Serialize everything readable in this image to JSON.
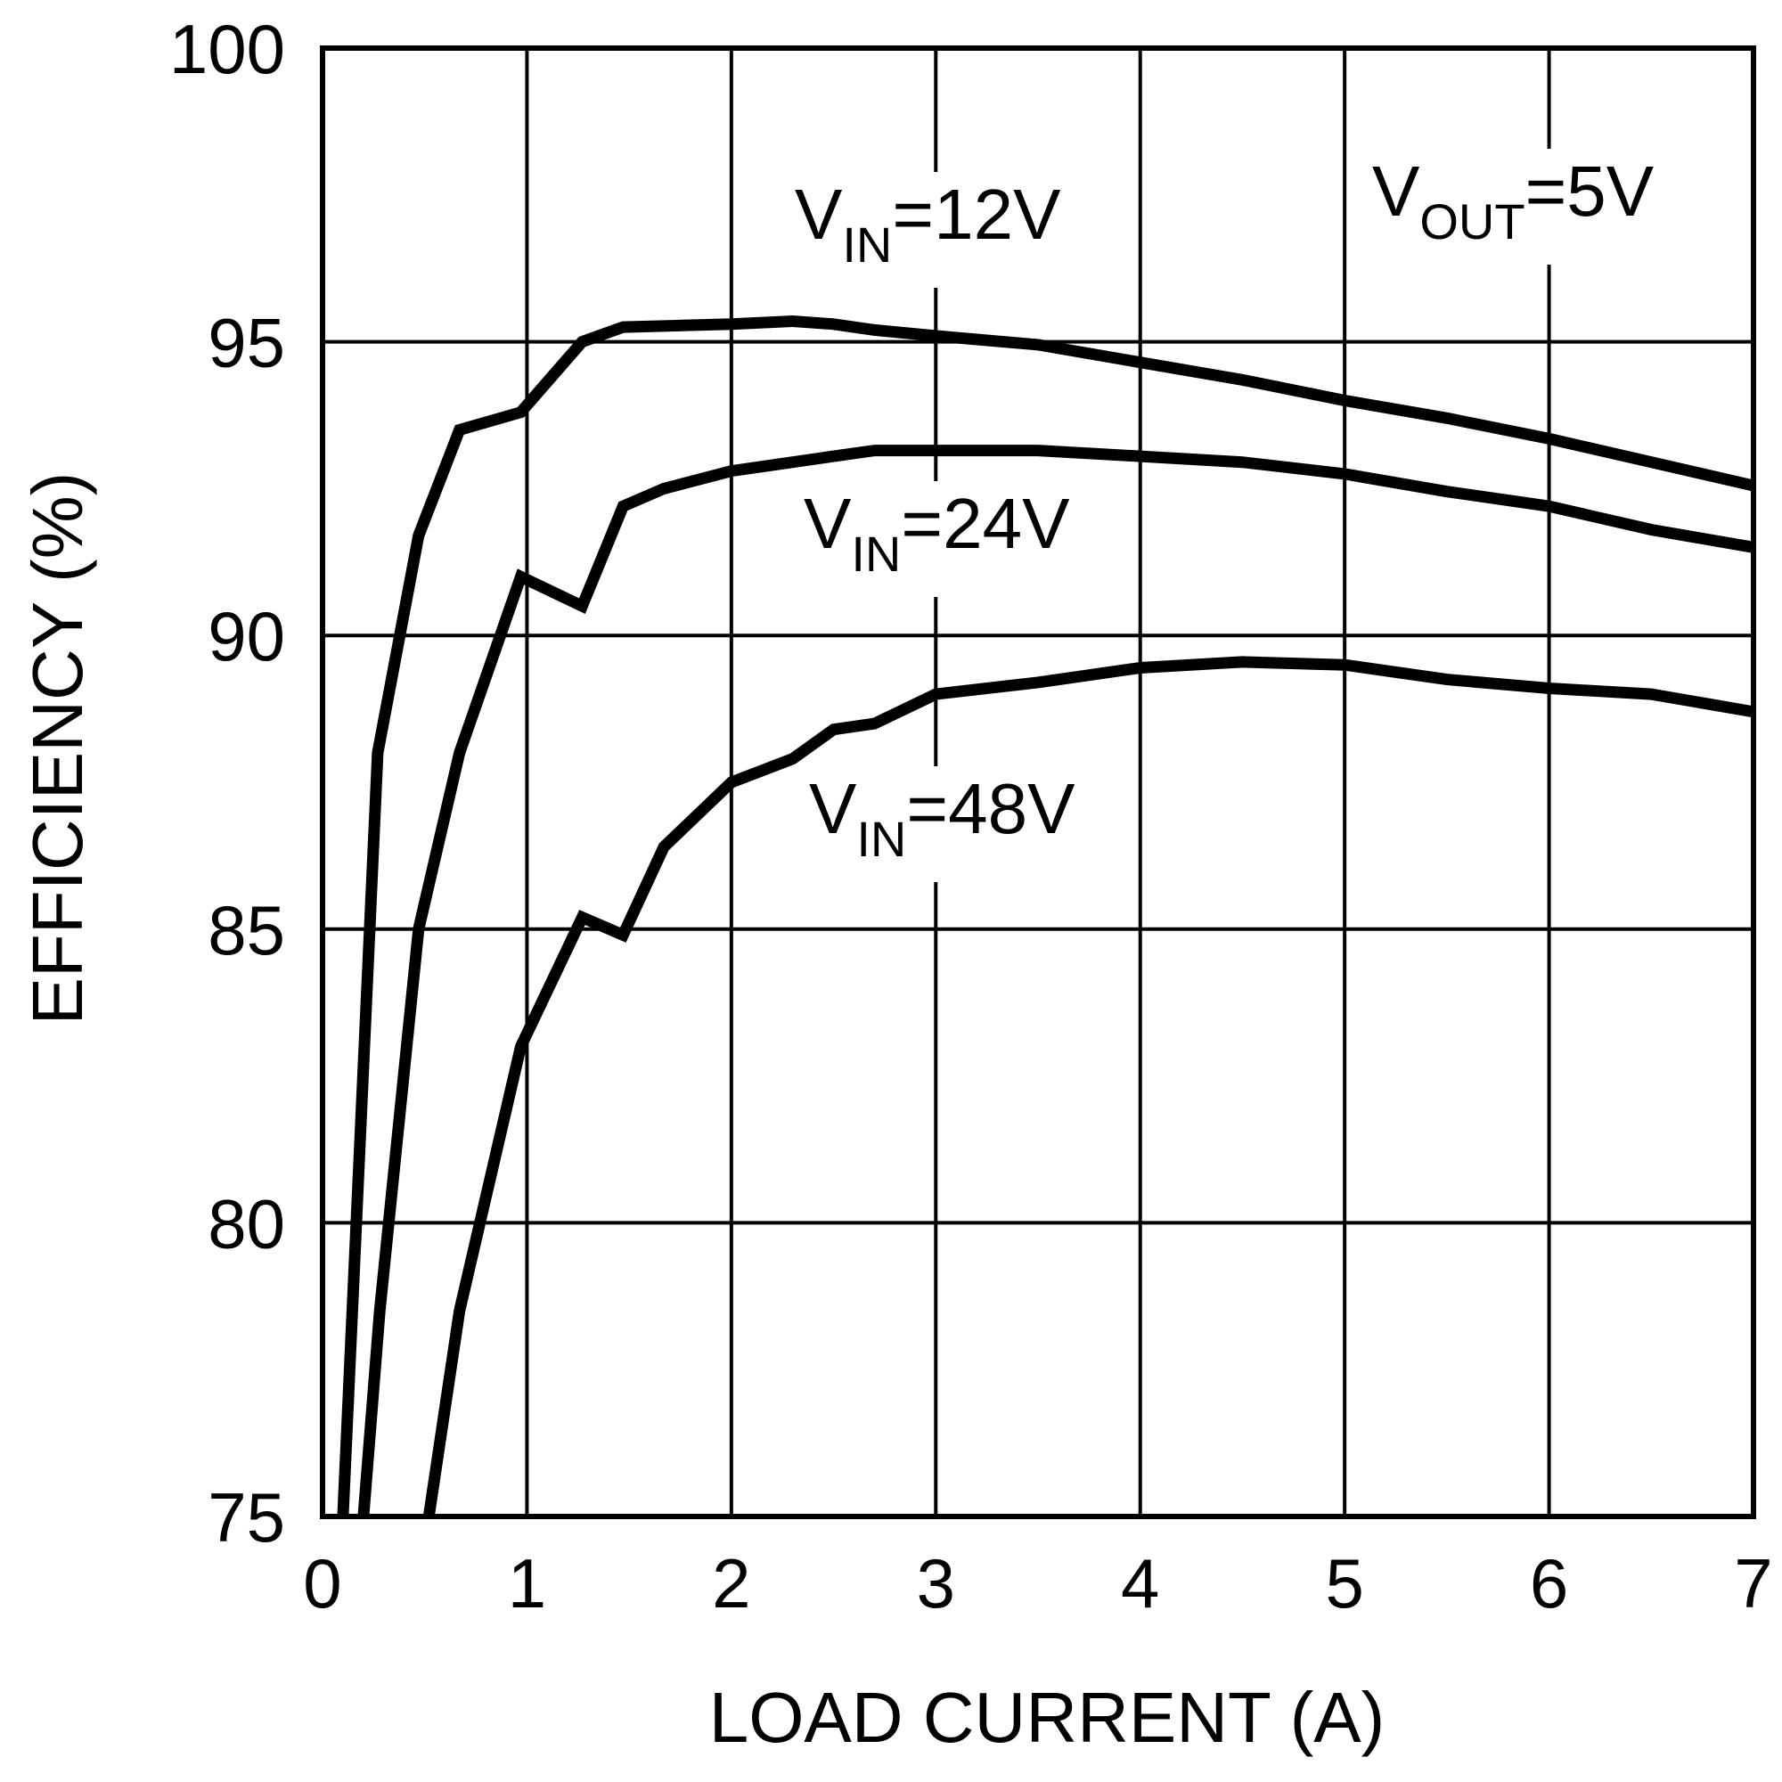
{
  "chart_data": {
    "type": "line",
    "title": "",
    "xlabel": "LOAD CURRENT (A)",
    "ylabel": "EFFICIENCY (%)",
    "xlim": [
      0,
      7
    ],
    "ylim": [
      75,
      100
    ],
    "x_ticks": [
      0,
      1,
      2,
      3,
      4,
      5,
      6,
      7
    ],
    "y_ticks": [
      75,
      80,
      85,
      90,
      95,
      100
    ],
    "x_tick_labels": [
      "0",
      "1",
      "2",
      "3",
      "4",
      "5",
      "6",
      "7"
    ],
    "y_tick_labels": [
      "75",
      "80",
      "85",
      "90",
      "95",
      "100"
    ],
    "grid": true,
    "legend": "none",
    "annotations": [
      {
        "main": "V",
        "sub": "OUT",
        "tail": "=5V",
        "note": "output voltage condition, top-right"
      },
      {
        "main": "V",
        "sub": "IN",
        "tail": "=12V",
        "series": "VIN=12V"
      },
      {
        "main": "V",
        "sub": "IN",
        "tail": "=24V",
        "series": "VIN=24V"
      },
      {
        "main": "V",
        "sub": "IN",
        "tail": "=48V",
        "series": "VIN=48V"
      }
    ],
    "series": [
      {
        "name": "VIN=12V",
        "x": [
          0.1,
          0.27,
          0.47,
          0.67,
          0.97,
          1.27,
          1.47,
          2.0,
          2.3,
          2.5,
          2.7,
          3.0,
          3.5,
          4.0,
          4.5,
          5.0,
          5.5,
          6.0,
          6.5,
          7.0
        ],
        "y": [
          75.0,
          88.0,
          91.7,
          93.5,
          93.8,
          95.0,
          95.25,
          95.3,
          95.35,
          95.3,
          95.2,
          95.1,
          94.95,
          94.65,
          94.35,
          94.0,
          93.7,
          93.35,
          92.95,
          92.55
        ]
      },
      {
        "name": "VIN=24V",
        "x": [
          0.2,
          0.28,
          0.47,
          0.67,
          0.97,
          1.27,
          1.47,
          1.67,
          2.0,
          2.3,
          2.5,
          2.7,
          3.0,
          3.5,
          4.0,
          4.5,
          5.0,
          5.5,
          6.0,
          6.5,
          7.0
        ],
        "y": [
          75.0,
          78.5,
          85.0,
          88.0,
          91.0,
          90.5,
          92.2,
          92.5,
          92.8,
          92.95,
          93.05,
          93.15,
          93.15,
          93.15,
          93.05,
          92.95,
          92.75,
          92.45,
          92.2,
          91.8,
          91.5
        ]
      },
      {
        "name": "VIN=48V",
        "x": [
          0.52,
          0.67,
          0.97,
          1.27,
          1.47,
          1.67,
          2.0,
          2.3,
          2.5,
          2.7,
          3.0,
          3.5,
          4.0,
          4.5,
          5.0,
          5.5,
          6.0,
          6.5,
          7.0
        ],
        "y": [
          75.0,
          78.5,
          83.0,
          85.2,
          84.9,
          86.4,
          87.5,
          87.9,
          88.4,
          88.5,
          89.0,
          89.2,
          89.45,
          89.55,
          89.5,
          89.25,
          89.1,
          89.0,
          88.7
        ]
      }
    ]
  }
}
